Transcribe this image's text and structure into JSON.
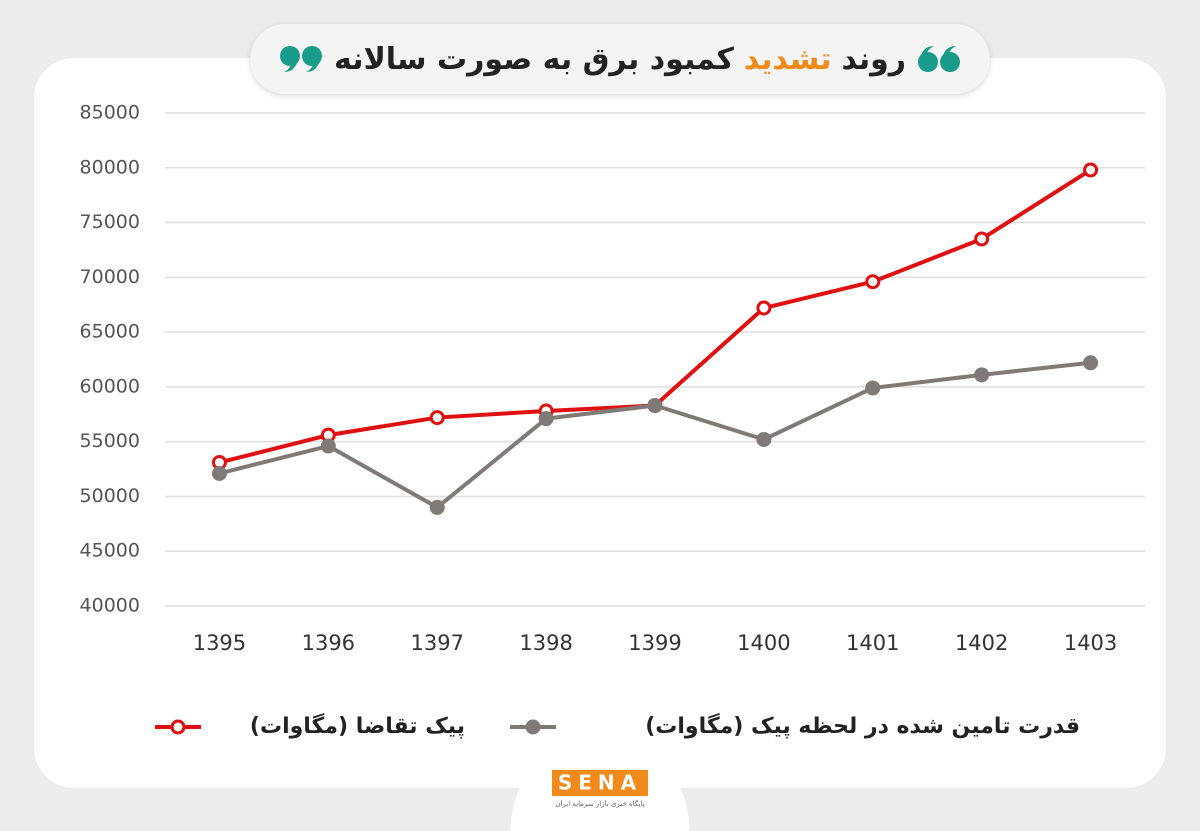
{
  "title_parts": [
    "روند",
    "تشدید",
    "کمبود برق به صورت سالانه"
  ],
  "logo": "SENA",
  "logo_subtitle": "پایگاه خبری بازار سرمایه ایران",
  "chart_data": {
    "type": "line",
    "categories": [
      "1395",
      "1396",
      "1397",
      "1398",
      "1399",
      "1400",
      "1401",
      "1402",
      "1403"
    ],
    "series": [
      {
        "name": "پیک تقاضا (مگاوات)",
        "color": "#e01010",
        "values": [
          53100,
          55600,
          57200,
          57800,
          58300,
          67200,
          69600,
          73500,
          79800
        ]
      },
      {
        "name": "قدرت تامین شده در لحظه پیک (مگاوات)",
        "color": "#7f7a77",
        "values": [
          52100,
          54600,
          49000,
          57100,
          58300,
          55200,
          59900,
          61100,
          62200
        ]
      }
    ],
    "ylim": [
      40000,
      85000
    ],
    "yticks": [
      40000,
      45000,
      50000,
      55000,
      60000,
      65000,
      70000,
      75000,
      80000,
      85000
    ],
    "grid": true
  }
}
